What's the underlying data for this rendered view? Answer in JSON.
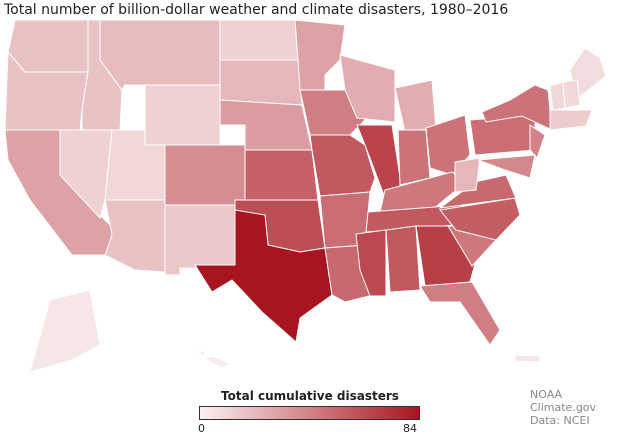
{
  "title": "Total number of billion-dollar weather and climate disasters, 1980–2016",
  "legend": {
    "title": "Total cumulative disasters",
    "min_label": "0",
    "max_label": "84",
    "min": 0,
    "max": 84,
    "color_low": "#fbf1f1",
    "color_high": "#a8141f"
  },
  "credit": {
    "line1": "NOAA Climate.gov",
    "line2": "Data: NCEI"
  },
  "state_values": {
    "WA": 18,
    "OR": 18,
    "CA": 30,
    "NV": 12,
    "ID": 18,
    "MT": 20,
    "WY": 12,
    "UT": 10,
    "AZ": 18,
    "CO": 38,
    "NM": 16,
    "ND": 12,
    "SD": 22,
    "NE": 32,
    "KS": 55,
    "OK": 62,
    "TX": 84,
    "MN": 30,
    "IA": 44,
    "MO": 58,
    "AR": 50,
    "LA": 52,
    "WI": 26,
    "IL": 66,
    "MI": 26,
    "IN": 48,
    "OH": 48,
    "KY": 46,
    "TN": 58,
    "MS": 64,
    "AL": 58,
    "GA": 68,
    "FL": 44,
    "SC": 46,
    "NC": 56,
    "VA": 52,
    "WV": 22,
    "PA": 50,
    "NY": 48,
    "NJ": 42,
    "MD": 40,
    "ME": 8,
    "VT": 10,
    "NH": 10,
    "MA": 14,
    "AK": 4,
    "HI": 2,
    "PR": 4
  }
}
